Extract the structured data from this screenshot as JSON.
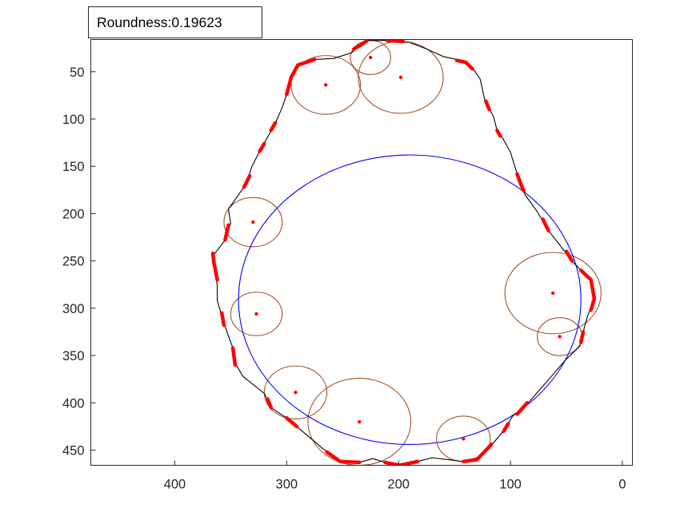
{
  "chart_data": {
    "type": "scatter",
    "annotation": {
      "label": "Roundness:",
      "value": "0.19623"
    },
    "x_axis": {
      "lim": [
        -9,
        475
      ],
      "reversed": true,
      "ticks": [
        400,
        300,
        200,
        100,
        0
      ]
    },
    "y_axis": {
      "lim": [
        16,
        466
      ],
      "reversed": true,
      "ticks": [
        50,
        100,
        150,
        200,
        250,
        300,
        350,
        400,
        450
      ]
    },
    "grid": false,
    "legend": "none",
    "contour": {
      "color": "#000000",
      "points": [
        [
          228,
          17
        ],
        [
          210,
          17
        ],
        [
          190,
          19
        ],
        [
          175,
          26
        ],
        [
          160,
          34
        ],
        [
          148,
          37
        ],
        [
          135,
          44
        ],
        [
          127,
          58
        ],
        [
          123,
          80
        ],
        [
          115,
          98
        ],
        [
          112,
          112
        ],
        [
          107,
          120
        ],
        [
          100,
          135
        ],
        [
          94,
          158
        ],
        [
          87,
          180
        ],
        [
          76,
          198
        ],
        [
          66,
          218
        ],
        [
          56,
          233
        ],
        [
          45,
          250
        ],
        [
          37,
          260
        ],
        [
          28,
          270
        ],
        [
          25,
          290
        ],
        [
          31,
          308
        ],
        [
          35,
          325
        ],
        [
          38,
          340
        ],
        [
          51,
          355
        ],
        [
          62,
          370
        ],
        [
          73,
          385
        ],
        [
          84,
          400
        ],
        [
          98,
          414
        ],
        [
          105,
          428
        ],
        [
          115,
          442
        ],
        [
          127,
          457
        ],
        [
          142,
          462
        ],
        [
          156,
          460
        ],
        [
          170,
          458
        ],
        [
          183,
          462
        ],
        [
          199,
          466
        ],
        [
          212,
          463
        ],
        [
          223,
          459
        ],
        [
          235,
          463
        ],
        [
          252,
          462
        ],
        [
          268,
          448
        ],
        [
          279,
          437
        ],
        [
          291,
          425
        ],
        [
          300,
          416
        ],
        [
          314,
          405
        ],
        [
          320,
          390
        ],
        [
          339,
          372
        ],
        [
          346,
          358
        ],
        [
          348,
          342
        ],
        [
          353,
          326
        ],
        [
          358,
          308
        ],
        [
          362,
          292
        ],
        [
          362,
          276
        ],
        [
          364,
          262
        ],
        [
          366,
          245
        ],
        [
          355,
          228
        ],
        [
          350,
          210
        ],
        [
          352,
          195
        ],
        [
          344,
          182
        ],
        [
          336,
          168
        ],
        [
          331,
          150
        ],
        [
          324,
          134
        ],
        [
          316,
          117
        ],
        [
          310,
          104
        ],
        [
          304,
          88
        ],
        [
          300,
          74
        ],
        [
          296,
          56
        ],
        [
          290,
          43
        ],
        [
          275,
          37
        ],
        [
          258,
          36
        ],
        [
          242,
          30
        ],
        [
          234,
          22
        ],
        [
          228,
          17
        ]
      ]
    },
    "highlighted_segments": {
      "color": "#ff0000",
      "segments": [
        [
          [
            300,
            74
          ],
          [
            296,
            56
          ],
          [
            290,
            43
          ],
          [
            275,
            37
          ]
        ],
        [
          [
            240,
            26
          ],
          [
            234,
            22
          ],
          [
            228,
            17
          ]
        ],
        [
          [
            210,
            17
          ],
          [
            196,
            18
          ]
        ],
        [
          [
            148,
            38
          ],
          [
            140,
            40
          ],
          [
            134,
            47
          ]
        ],
        [
          [
            122,
            81
          ],
          [
            119,
            90
          ]
        ],
        [
          [
            112,
            112
          ],
          [
            109,
            118
          ]
        ],
        [
          [
            94,
            158
          ],
          [
            91,
            168
          ],
          [
            88,
            176
          ]
        ],
        [
          [
            71,
            206
          ],
          [
            66,
            218
          ]
        ],
        [
          [
            50,
            240
          ],
          [
            45,
            250
          ]
        ],
        [
          [
            37,
            260
          ],
          [
            28,
            270
          ],
          [
            25,
            290
          ],
          [
            28,
            302
          ]
        ],
        [
          [
            35,
            325
          ],
          [
            37,
            336
          ]
        ],
        [
          [
            85,
            400
          ],
          [
            94,
            412
          ]
        ],
        [
          [
            102,
            422
          ],
          [
            106,
            430
          ]
        ],
        [
          [
            117,
            444
          ],
          [
            130,
            460
          ],
          [
            142,
            462
          ]
        ],
        [
          [
            183,
            462
          ],
          [
            199,
            466
          ],
          [
            212,
            463
          ]
        ],
        [
          [
            235,
            463
          ],
          [
            252,
            462
          ],
          [
            264,
            452
          ]
        ],
        [
          [
            291,
            425
          ],
          [
            300,
            416
          ]
        ],
        [
          [
            314,
            405
          ],
          [
            317,
            396
          ]
        ],
        [
          [
            346,
            360
          ],
          [
            348,
            342
          ]
        ],
        [
          [
            356,
            318
          ],
          [
            358,
            305
          ]
        ],
        [
          [
            362,
            270
          ],
          [
            365,
            252
          ],
          [
            366,
            242
          ]
        ],
        [
          [
            355,
            228
          ],
          [
            352,
            212
          ]
        ],
        [
          [
            338,
            172
          ],
          [
            333,
            160
          ]
        ],
        [
          [
            324,
            134
          ],
          [
            320,
            126
          ]
        ],
        [
          [
            314,
            112
          ],
          [
            310,
            104
          ]
        ]
      ]
    },
    "inscribed_circle": {
      "color": "#0000ff",
      "center": [
        190,
        291
      ],
      "radius": 153
    },
    "local_circles": {
      "color": "#a0522d",
      "circles": [
        {
          "center": [
            225,
            35
          ],
          "radius": 18
        },
        {
          "center": [
            198,
            56
          ],
          "radius": 38
        },
        {
          "center": [
            265,
            64
          ],
          "radius": 31
        },
        {
          "center": [
            330,
            209
          ],
          "radius": 26
        },
        {
          "center": [
            327,
            306
          ],
          "radius": 23
        },
        {
          "center": [
            62,
            284
          ],
          "radius": 43
        },
        {
          "center": [
            56,
            330
          ],
          "radius": 20
        },
        {
          "center": [
            292,
            389
          ],
          "radius": 28
        },
        {
          "center": [
            235,
            420
          ],
          "radius": 46
        },
        {
          "center": [
            142,
            438
          ],
          "radius": 24
        }
      ]
    },
    "circle_centers": {
      "color": "#ff0000",
      "points": [
        [
          225,
          35
        ],
        [
          198,
          56
        ],
        [
          265,
          64
        ],
        [
          330,
          209
        ],
        [
          327,
          306
        ],
        [
          62,
          284
        ],
        [
          56,
          330
        ],
        [
          292,
          389
        ],
        [
          235,
          420
        ],
        [
          142,
          438
        ]
      ]
    }
  }
}
